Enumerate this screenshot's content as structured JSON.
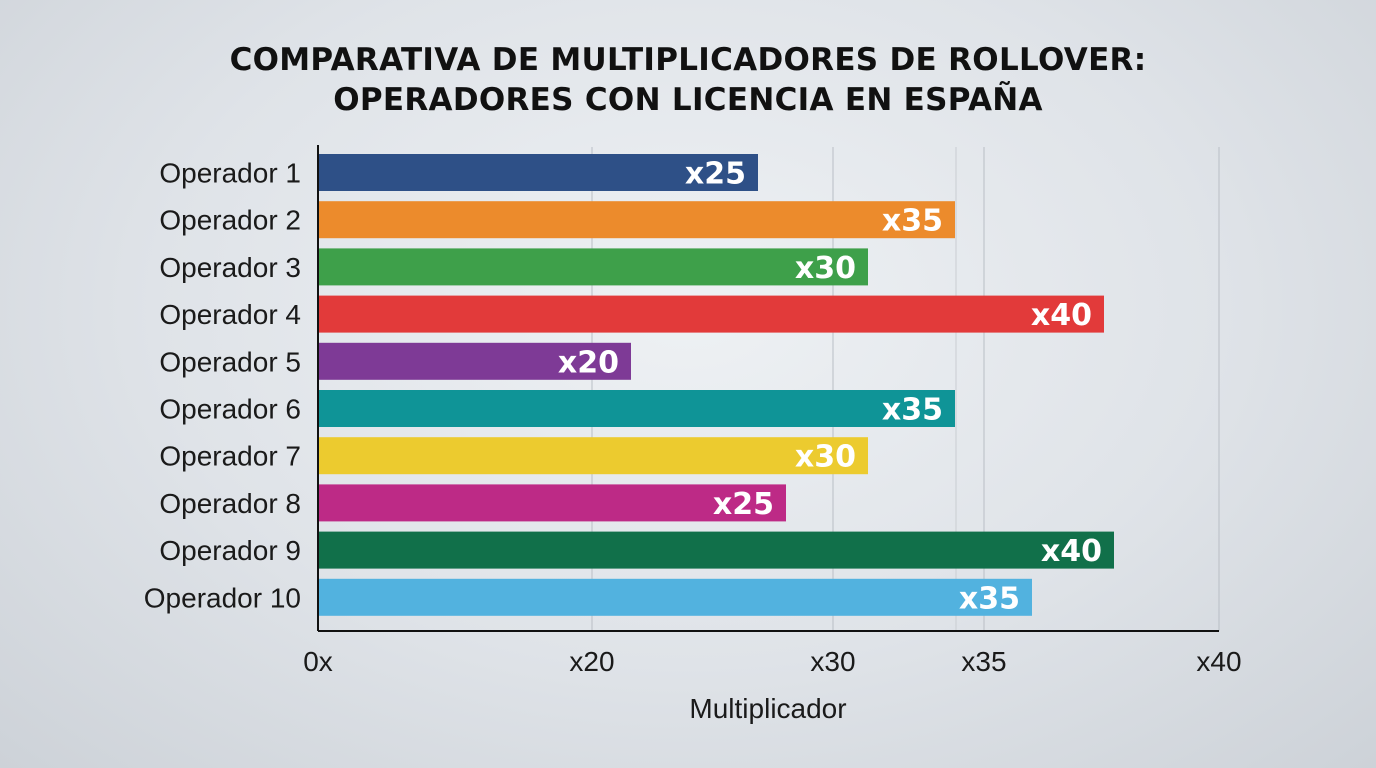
{
  "chart_data": {
    "type": "bar",
    "orientation": "horizontal",
    "title_lines": [
      "COMPARATIVA DE MULTIPLICADORES DE ROLLOVER:",
      "OPERADORES CON LICENCIA EN ESPAÑA"
    ],
    "xlabel": "Multiplicador",
    "ylabel": "",
    "x_ticks": [
      "0x",
      "x20",
      "x30",
      "x35",
      "x40"
    ],
    "categories": [
      "Operador 1",
      "Operador 2",
      "Operador 3",
      "Operador 4",
      "Operador 5",
      "Operador 6",
      "Operador 7",
      "Operador 8",
      "Operador 9",
      "Operador 10"
    ],
    "values": [
      25,
      35,
      30,
      40,
      20,
      35,
      30,
      25,
      40,
      35
    ],
    "data_labels": [
      "x25",
      "x35",
      "x30",
      "x40",
      "x20",
      "x35",
      "x30",
      "x25",
      "x40",
      "x35"
    ],
    "colors": [
      "#2e5087",
      "#ec8b2c",
      "#3ea04a",
      "#e23a3a",
      "#7e3a96",
      "#0f9497",
      "#eccb2f",
      "#bd2a86",
      "#11704a",
      "#52b2df"
    ],
    "grid": "vertical",
    "legend": "none"
  }
}
